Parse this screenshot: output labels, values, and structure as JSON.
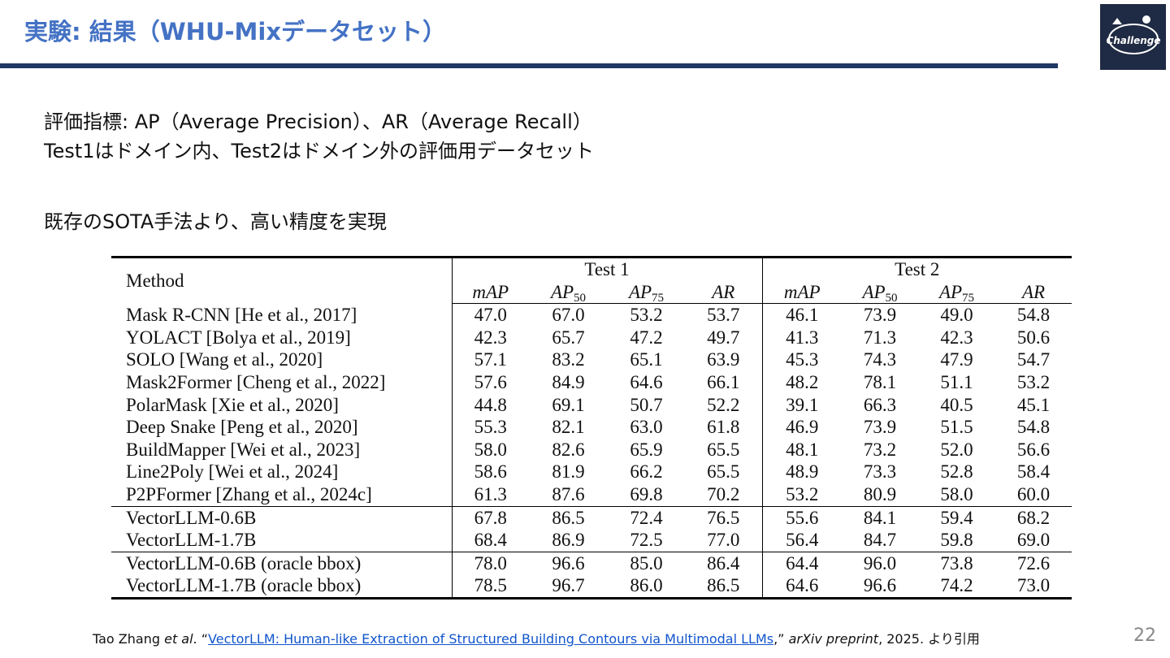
{
  "slide": {
    "title": "実験: 結果（WHU-Mixデータセット）",
    "page_number": "22"
  },
  "logo": {
    "icon": "challenge-logo-icon",
    "text": "Challenge"
  },
  "bullets": {
    "metrics": "評価指標: AP（Average Precision）、AR（Average Recall）",
    "test_sets": "Test1はドメイン内、Test2はドメイン外の評価用データセット",
    "conclusion": "既存のSOTA手法より、高い精度を実現"
  },
  "table": {
    "method_header": "Method",
    "groups": [
      "Test 1",
      "Test 2"
    ],
    "metrics": [
      {
        "base": "mAP",
        "sub": ""
      },
      {
        "base": "AP",
        "sub": "50"
      },
      {
        "base": "AP",
        "sub": "75"
      },
      {
        "base": "AR",
        "sub": ""
      },
      {
        "base": "mAP",
        "sub": ""
      },
      {
        "base": "AP",
        "sub": "50"
      },
      {
        "base": "AP",
        "sub": "75"
      },
      {
        "base": "AR",
        "sub": ""
      }
    ],
    "rows": [
      {
        "method": "Mask R-CNN [He et al., 2017]",
        "values": [
          "47.0",
          "67.0",
          "53.2",
          "53.7",
          "46.1",
          "73.9",
          "49.0",
          "54.8"
        ]
      },
      {
        "method": "YOLACT [Bolya et al., 2019]",
        "values": [
          "42.3",
          "65.7",
          "47.2",
          "49.7",
          "41.3",
          "71.3",
          "42.3",
          "50.6"
        ]
      },
      {
        "method": "SOLO [Wang et al., 2020]",
        "values": [
          "57.1",
          "83.2",
          "65.1",
          "63.9",
          "45.3",
          "74.3",
          "47.9",
          "54.7"
        ]
      },
      {
        "method": "Mask2Former [Cheng et al., 2022]",
        "values": [
          "57.6",
          "84.9",
          "64.6",
          "66.1",
          "48.2",
          "78.1",
          "51.1",
          "53.2"
        ]
      },
      {
        "method": "PolarMask [Xie et al., 2020]",
        "values": [
          "44.8",
          "69.1",
          "50.7",
          "52.2",
          "39.1",
          "66.3",
          "40.5",
          "45.1"
        ]
      },
      {
        "method": "Deep Snake [Peng et al., 2020]",
        "values": [
          "55.3",
          "82.1",
          "63.0",
          "61.8",
          "46.9",
          "73.9",
          "51.5",
          "54.8"
        ]
      },
      {
        "method": "BuildMapper [Wei et al., 2023]",
        "values": [
          "58.0",
          "82.6",
          "65.9",
          "65.5",
          "48.1",
          "73.2",
          "52.0",
          "56.6"
        ]
      },
      {
        "method": "Line2Poly [Wei et al., 2024]",
        "values": [
          "58.6",
          "81.9",
          "66.2",
          "65.5",
          "48.9",
          "73.3",
          "52.8",
          "58.4"
        ]
      },
      {
        "method": "P2PFormer [Zhang et al., 2024c]",
        "values": [
          "61.3",
          "87.6",
          "69.8",
          "70.2",
          "53.2",
          "80.9",
          "58.0",
          "60.0"
        ]
      },
      {
        "method": "VectorLLM-0.6B",
        "values": [
          "67.8",
          "86.5",
          "72.4",
          "76.5",
          "55.6",
          "84.1",
          "59.4",
          "68.2"
        ]
      },
      {
        "method": "VectorLLM-1.7B",
        "values": [
          "68.4",
          "86.9",
          "72.5",
          "77.0",
          "56.4",
          "84.7",
          "59.8",
          "69.0"
        ]
      },
      {
        "method": "VectorLLM-0.6B (oracle bbox)",
        "values": [
          "78.0",
          "96.6",
          "85.0",
          "86.4",
          "64.4",
          "96.0",
          "73.8",
          "72.6"
        ]
      },
      {
        "method": "VectorLLM-1.7B (oracle bbox)",
        "values": [
          "78.5",
          "96.7",
          "86.0",
          "86.5",
          "64.6",
          "96.6",
          "74.2",
          "73.0"
        ]
      }
    ],
    "section_breaks_before": [
      9,
      11
    ]
  },
  "caption": {
    "author": "Tao Zhang ",
    "etal": "et al",
    "after_etal": ". “",
    "link_text": "VectorLLM: Human-like Extraction of Structured Building Contours via Multimodal LLMs",
    "after_link": ",” ",
    "venue": "arXiv preprint",
    "tail": ", 2025. より引用"
  }
}
